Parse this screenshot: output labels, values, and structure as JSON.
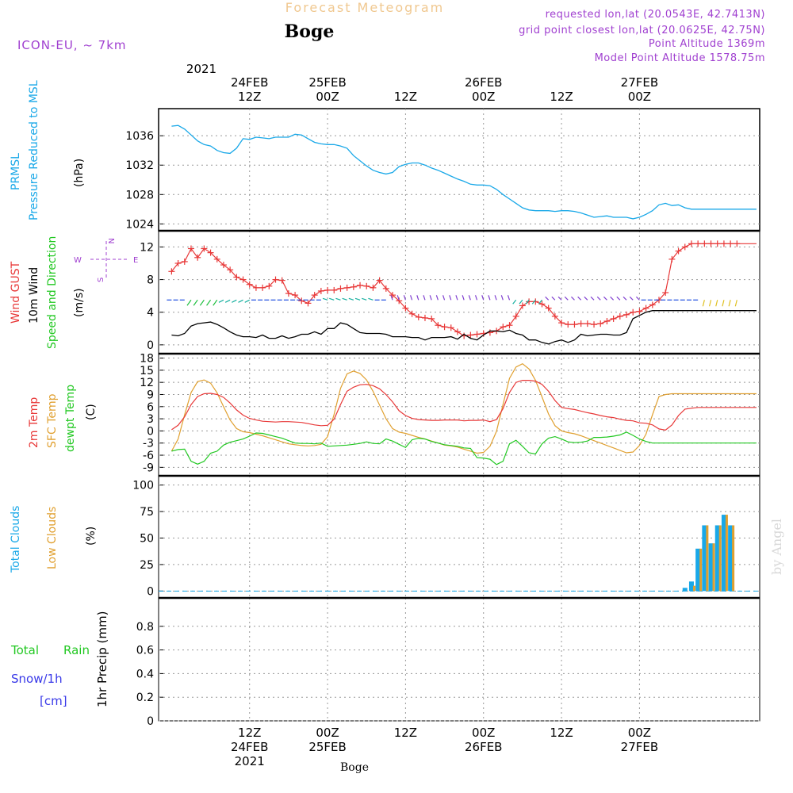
{
  "header": {
    "title": "Forecast Meteogram",
    "station": "Boge",
    "model": "ICON-EU, ~ 7km",
    "requested": "requested lon,lat (20.0543E, 42.7413N)",
    "gridpoint": "grid point closest lon,lat (20.0625E, 42.75N)",
    "altitude": "Point Altitude 1369m",
    "model_altitude": "Model Point Altitude 1578.75m",
    "watermark": "by Angel",
    "bottom_station": "Boge"
  },
  "time_axis": {
    "top_year": "2021",
    "ticks": [
      {
        "t": 12,
        "line1": "12Z",
        "line2": "24FEB",
        "line3": "2021"
      },
      {
        "t": 24,
        "line1": "00Z",
        "line2": "25FEB"
      },
      {
        "t": 36,
        "line1": "12Z",
        "line2": ""
      },
      {
        "t": 48,
        "line1": "00Z",
        "line2": "26FEB"
      },
      {
        "t": 60,
        "line1": "12Z",
        "line2": ""
      },
      {
        "t": 72,
        "line1": "00Z",
        "line2": "27FEB"
      }
    ],
    "top_ticks": [
      {
        "t": 12,
        "line1": "24FEB",
        "line2": "12Z"
      },
      {
        "t": 24,
        "line1": "25FEB",
        "line2": "00Z"
      },
      {
        "t": 36,
        "line1": "",
        "line2": "12Z"
      },
      {
        "t": 48,
        "line1": "26FEB",
        "line2": "00Z"
      },
      {
        "t": 60,
        "line1": "",
        "line2": "12Z"
      },
      {
        "t": 72,
        "line1": "27FEB",
        "line2": "00Z"
      }
    ]
  },
  "panel_labels": {
    "p1": {
      "a": "PRMSL",
      "b": "Pressure Reduced to MSL",
      "unit": "(hPa)"
    },
    "p2": {
      "a": "Wind GUST",
      "b": "10m Wind",
      "c": "Speed and Direction",
      "unit": "(m/s)",
      "compass_w": "W",
      "compass_e": "E",
      "compass_n": "N",
      "compass_s": "S"
    },
    "p3": {
      "a": "2m Temp",
      "b": "SFC Temp",
      "c": "dewpt Temp",
      "unit": "(C)"
    },
    "p4": {
      "a": "Total Clouds",
      "b": "Low Clouds",
      "unit": "(%)"
    },
    "p5": {
      "a": "Total",
      "b": "Rain",
      "c": "Snow/1h",
      "d": "[cm]",
      "unit": "1hr Precip (mm)"
    }
  },
  "colors": {
    "pressure": "#19a8e8",
    "gust": "#e83838",
    "wind": "#000000",
    "t2m": "#e83838",
    "tsfc": "#e0a030",
    "dewpt": "#22c822",
    "total_cloud": "#19a8e8",
    "low_cloud": "#e0a030",
    "title": "#f0c890",
    "info": "#a040d0",
    "rain": "#22c822",
    "snow": "#3838e8"
  },
  "chart_data": [
    {
      "type": "line",
      "name": "PRMSL",
      "ylim": [
        1023.5,
        1038.5
      ],
      "yticks": [
        1024,
        1028,
        1032,
        1036
      ],
      "x": [
        0,
        1,
        2,
        3,
        4,
        5,
        6,
        7,
        8,
        9,
        10,
        11,
        12,
        13,
        14,
        15,
        16,
        17,
        18,
        19,
        20,
        21,
        22,
        23,
        24,
        25,
        26,
        27,
        28,
        29,
        30,
        31,
        32,
        33,
        34,
        35,
        36,
        37,
        38,
        39,
        40,
        41,
        42,
        43,
        44,
        45,
        46,
        47,
        48,
        49,
        50,
        51,
        52,
        53,
        54,
        55,
        56,
        57,
        58,
        59,
        60,
        61,
        62,
        63,
        64,
        65,
        66,
        67,
        68,
        69,
        70,
        71,
        72,
        73,
        74,
        75,
        76,
        77,
        78,
        79,
        80,
        81,
        82,
        83,
        84,
        85,
        86,
        87,
        88,
        89,
        90
      ],
      "values": [
        1037.3,
        1037.4,
        1036.9,
        1036.1,
        1035.3,
        1034.8,
        1034.6,
        1034.0,
        1033.7,
        1033.6,
        1034.3,
        1035.6,
        1035.5,
        1035.8,
        1035.7,
        1035.6,
        1035.8,
        1035.8,
        1035.8,
        1036.2,
        1036.1,
        1035.6,
        1035.1,
        1034.9,
        1034.8,
        1034.8,
        1034.6,
        1034.3,
        1033.3,
        1032.6,
        1031.9,
        1031.3,
        1031.0,
        1030.8,
        1031.0,
        1031.8,
        1032.1,
        1032.3,
        1032.3,
        1032.0,
        1031.6,
        1031.3,
        1030.9,
        1030.5,
        1030.1,
        1029.8,
        1029.4,
        1029.3,
        1029.3,
        1029.2,
        1028.7,
        1028.0,
        1027.4,
        1026.8,
        1026.2,
        1025.9,
        1025.8,
        1025.8,
        1025.8,
        1025.7,
        1025.8,
        1025.8,
        1025.7,
        1025.5,
        1025.2,
        1024.9,
        1025.0,
        1025.1,
        1024.9,
        1024.9,
        1024.9,
        1024.7,
        1024.9,
        1025.3,
        1025.8,
        1026.6,
        1026.8,
        1026.5,
        1026.6,
        1026.2,
        1026.0,
        1026.0,
        1026.0,
        1026.0,
        1026.0,
        1026.0,
        1026.0,
        1026.0,
        1026.0,
        1026.0,
        1026.0
      ]
    },
    {
      "type": "line",
      "name": "Wind",
      "ylim": [
        -0.5,
        13.5
      ],
      "yticks": [
        0,
        4,
        8,
        12
      ],
      "x": [
        0,
        1,
        2,
        3,
        4,
        5,
        6,
        7,
        8,
        9,
        10,
        11,
        12,
        13,
        14,
        15,
        16,
        17,
        18,
        19,
        20,
        21,
        22,
        23,
        24,
        25,
        26,
        27,
        28,
        29,
        30,
        31,
        32,
        33,
        34,
        35,
        36,
        37,
        38,
        39,
        40,
        41,
        42,
        43,
        44,
        45,
        46,
        47,
        48,
        49,
        50,
        51,
        52,
        53,
        54,
        55,
        56,
        57,
        58,
        59,
        60,
        61,
        62,
        63,
        64,
        65,
        66,
        67,
        68,
        69,
        70,
        71,
        72,
        73,
        74,
        75,
        76,
        77,
        78,
        79,
        80,
        81,
        82,
        83,
        84,
        85,
        86,
        87,
        88,
        89,
        90
      ],
      "series": [
        {
          "key": "gust",
          "values": [
            9.0,
            10.0,
            10.2,
            11.8,
            10.7,
            11.8,
            11.3,
            10.5,
            9.8,
            9.2,
            8.3,
            8.0,
            7.4,
            7.0,
            7.0,
            7.2,
            8.0,
            7.9,
            6.3,
            6.1,
            5.4,
            5.1,
            6.1,
            6.6,
            6.7,
            6.7,
            6.9,
            7.0,
            7.1,
            7.3,
            7.2,
            7.0,
            7.9,
            6.9,
            6.1,
            5.4,
            4.5,
            3.8,
            3.4,
            3.3,
            3.2,
            2.4,
            2.2,
            2.1,
            1.6,
            1.1,
            1.2,
            1.3,
            1.4,
            1.5,
            1.7,
            2.2,
            2.4,
            3.5,
            4.8,
            5.3,
            5.3,
            5.0,
            4.5,
            3.5,
            2.7,
            2.5,
            2.5,
            2.6,
            2.6,
            2.5,
            2.6,
            2.9,
            3.2,
            3.5,
            3.7,
            4.0,
            4.1,
            4.5,
            4.9,
            5.5,
            6.4,
            10.5,
            11.5,
            12.0,
            12.4,
            12.4,
            12.4,
            12.4,
            12.4,
            12.4,
            12.4,
            12.4,
            12.4,
            12.4,
            12.4
          ]
        },
        {
          "key": "wind",
          "values": [
            1.2,
            1.1,
            1.4,
            2.3,
            2.6,
            2.7,
            2.8,
            2.5,
            2.1,
            1.6,
            1.2,
            1.0,
            1.0,
            0.9,
            1.2,
            0.8,
            0.8,
            1.1,
            0.8,
            1.0,
            1.3,
            1.3,
            1.6,
            1.3,
            2.0,
            2.0,
            2.7,
            2.5,
            2.0,
            1.5,
            1.4,
            1.4,
            1.4,
            1.3,
            1.0,
            1.0,
            1.0,
            0.9,
            0.9,
            0.6,
            0.9,
            0.9,
            0.9,
            1.0,
            0.7,
            1.3,
            0.8,
            0.6,
            1.2,
            1.7,
            1.7,
            1.6,
            1.8,
            1.4,
            1.2,
            0.6,
            0.6,
            0.3,
            0.1,
            0.4,
            0.6,
            0.3,
            0.6,
            1.3,
            1.1,
            1.2,
            1.3,
            1.3,
            1.2,
            1.2,
            1.5,
            3.2,
            3.6,
            4.0,
            4.2,
            4.2,
            4.2,
            4.2,
            4.2,
            4.2,
            4.2,
            4.2,
            4.2,
            4.2,
            4.2,
            4.2,
            4.2,
            4.2,
            4.2,
            4.2,
            4.2
          ]
        }
      ]
    },
    {
      "type": "line",
      "name": "Temperature",
      "ylim": [
        -10.5,
        18.5
      ],
      "yticks": [
        -9,
        -6,
        -3,
        0,
        3,
        6,
        9,
        12,
        15,
        18
      ],
      "x": [
        0,
        1,
        2,
        3,
        4,
        5,
        6,
        7,
        8,
        9,
        10,
        11,
        12,
        13,
        14,
        15,
        16,
        17,
        18,
        19,
        20,
        21,
        22,
        23,
        24,
        25,
        26,
        27,
        28,
        29,
        30,
        31,
        32,
        33,
        34,
        35,
        36,
        37,
        38,
        39,
        40,
        41,
        42,
        43,
        44,
        45,
        46,
        47,
        48,
        49,
        50,
        51,
        52,
        53,
        54,
        55,
        56,
        57,
        58,
        59,
        60,
        61,
        62,
        63,
        64,
        65,
        66,
        67,
        68,
        69,
        70,
        71,
        72,
        73,
        74,
        75,
        76,
        77,
        78,
        79,
        80,
        81,
        82,
        83,
        84,
        85,
        86,
        87,
        88,
        89,
        90
      ],
      "series": [
        {
          "key": "t2m",
          "values": [
            0.3,
            1.4,
            3.5,
            6.5,
            8.5,
            9.2,
            9.3,
            9.0,
            8.3,
            6.9,
            5.2,
            3.9,
            3.1,
            2.7,
            2.4,
            2.3,
            2.2,
            2.3,
            2.3,
            2.2,
            2.1,
            1.8,
            1.5,
            1.3,
            1.4,
            2.9,
            6.5,
            9.8,
            10.8,
            11.4,
            11.5,
            11.2,
            10.4,
            9.0,
            7.2,
            5.0,
            3.8,
            3.1,
            2.8,
            2.7,
            2.6,
            2.6,
            2.7,
            2.7,
            2.7,
            2.5,
            2.6,
            2.6,
            2.7,
            2.3,
            2.8,
            5.5,
            9.5,
            12.0,
            12.5,
            12.5,
            12.3,
            11.5,
            9.8,
            7.5,
            5.8,
            5.5,
            5.3,
            4.9,
            4.5,
            4.2,
            3.8,
            3.5,
            3.3,
            2.9,
            2.6,
            2.5,
            2.0,
            1.9,
            1.5,
            0.5,
            0.2,
            1.5,
            3.8,
            5.4,
            5.6,
            5.8,
            5.8,
            5.8,
            5.8,
            5.8,
            5.8,
            5.8,
            5.8,
            5.8,
            5.8
          ]
        },
        {
          "key": "tsfc",
          "values": [
            -5.0,
            -2.0,
            4.0,
            9.5,
            12.2,
            12.6,
            11.8,
            9.4,
            6.0,
            2.7,
            0.6,
            -0.2,
            -0.4,
            -0.8,
            -1.2,
            -1.7,
            -2.2,
            -2.7,
            -3.2,
            -3.4,
            -3.6,
            -3.7,
            -3.6,
            -3.3,
            -1.4,
            4.1,
            10.5,
            14.1,
            14.8,
            14.2,
            12.6,
            9.8,
            6.4,
            3.0,
            0.6,
            -0.3,
            -0.6,
            -1.1,
            -1.6,
            -2.0,
            -2.5,
            -3.0,
            -3.5,
            -3.7,
            -4.0,
            -4.5,
            -5.0,
            -5.5,
            -5.3,
            -3.8,
            -0.1,
            6.5,
            13.0,
            15.8,
            16.6,
            15.3,
            12.5,
            8.4,
            4.2,
            1.3,
            0.0,
            -0.4,
            -0.7,
            -1.2,
            -1.8,
            -2.4,
            -3.0,
            -3.6,
            -4.2,
            -4.8,
            -5.4,
            -5.2,
            -3.6,
            -0.8,
            4.0,
            8.5,
            9.0,
            9.2,
            9.2,
            9.2,
            9.2,
            9.2,
            9.2,
            9.2,
            9.2,
            9.2,
            9.2,
            9.2,
            9.2,
            9.2,
            9.2
          ]
        },
        {
          "key": "dewpt",
          "values": [
            -5.0,
            -4.6,
            -4.5,
            -7.5,
            -8.2,
            -7.5,
            -5.5,
            -5.0,
            -3.5,
            -2.8,
            -2.4,
            -2.0,
            -1.3,
            -0.5,
            -0.6,
            -1.0,
            -1.4,
            -1.8,
            -2.4,
            -3.0,
            -3.1,
            -3.1,
            -3.2,
            -3.0,
            -3.8,
            -3.7,
            -3.6,
            -3.5,
            -3.3,
            -3.1,
            -2.7,
            -3.1,
            -3.2,
            -2.0,
            -2.5,
            -3.3,
            -4.1,
            -2.2,
            -1.8,
            -2.0,
            -2.6,
            -3.0,
            -3.4,
            -3.6,
            -3.8,
            -4.2,
            -4.3,
            -6.6,
            -6.7,
            -7.0,
            -8.3,
            -7.5,
            -3.2,
            -2.3,
            -3.8,
            -5.4,
            -5.7,
            -3.2,
            -1.8,
            -1.4,
            -2.0,
            -2.7,
            -2.9,
            -2.8,
            -2.5,
            -1.6,
            -1.6,
            -1.5,
            -1.3,
            -1.0,
            -0.3,
            -1.1,
            -2.0,
            -2.6,
            -3.0,
            -3.0,
            -3.0,
            -3.0,
            -3.0,
            -3.0,
            -3.0,
            -3.0,
            -3.0,
            -3.0,
            -3.0,
            -3.0,
            -3.0,
            -3.0,
            -3.0,
            -3.0,
            -3.0
          ]
        }
      ]
    },
    {
      "type": "bar",
      "name": "Clouds",
      "ylim": [
        -5,
        105
      ],
      "yticks": [
        0,
        25,
        50,
        75,
        100
      ],
      "x": [
        79,
        80,
        81,
        82,
        83,
        84,
        85,
        86,
        87,
        88
      ],
      "series": [
        {
          "key": "total",
          "values": [
            3,
            9,
            40,
            62,
            45,
            62,
            72,
            62,
            0,
            0
          ]
        },
        {
          "key": "low",
          "values": [
            0,
            5,
            40,
            62,
            45,
            62,
            72,
            62,
            0,
            0
          ]
        }
      ]
    },
    {
      "type": "bar",
      "name": "Precip",
      "ylim": [
        0,
        1.0
      ],
      "yticks": [
        0,
        0.2,
        0.4,
        0.6,
        0.8
      ],
      "ytick_labels": [
        "0",
        "0.2",
        "0.4",
        "0.6",
        "0.8"
      ],
      "values": []
    }
  ]
}
